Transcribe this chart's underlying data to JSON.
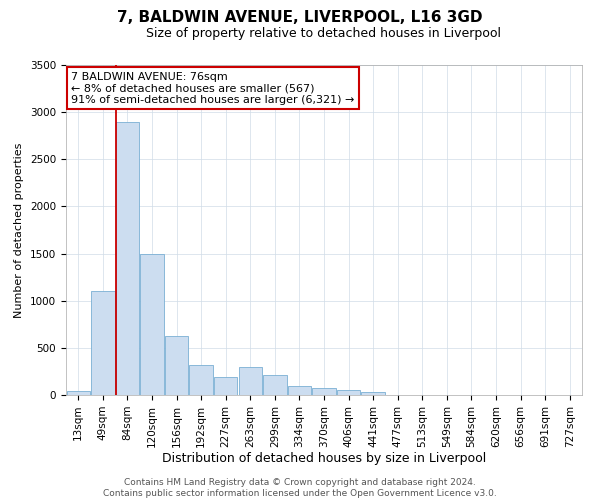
{
  "title": "7, BALDWIN AVENUE, LIVERPOOL, L16 3GD",
  "subtitle": "Size of property relative to detached houses in Liverpool",
  "xlabel": "Distribution of detached houses by size in Liverpool",
  "ylabel": "Number of detached properties",
  "bar_labels": [
    "13sqm",
    "49sqm",
    "84sqm",
    "120sqm",
    "156sqm",
    "192sqm",
    "227sqm",
    "263sqm",
    "299sqm",
    "334sqm",
    "370sqm",
    "406sqm",
    "441sqm",
    "477sqm",
    "513sqm",
    "549sqm",
    "584sqm",
    "620sqm",
    "656sqm",
    "691sqm",
    "727sqm"
  ],
  "bar_values": [
    45,
    1100,
    2900,
    1500,
    630,
    320,
    190,
    295,
    215,
    100,
    75,
    50,
    30,
    0,
    0,
    0,
    0,
    0,
    0,
    0,
    0
  ],
  "bar_color": "#ccddf0",
  "bar_edge_color": "#7aafd4",
  "vline_color": "#cc0000",
  "ylim": [
    0,
    3500
  ],
  "yticks": [
    0,
    500,
    1000,
    1500,
    2000,
    2500,
    3000,
    3500
  ],
  "annotation_title": "7 BALDWIN AVENUE: 76sqm",
  "annotation_line1": "← 8% of detached houses are smaller (567)",
  "annotation_line2": "91% of semi-detached houses are larger (6,321) →",
  "annotation_box_color": "#ffffff",
  "annotation_box_edge": "#cc0000",
  "footer1": "Contains HM Land Registry data © Crown copyright and database right 2024.",
  "footer2": "Contains public sector information licensed under the Open Government Licence v3.0.",
  "title_fontsize": 11,
  "subtitle_fontsize": 9,
  "xlabel_fontsize": 9,
  "ylabel_fontsize": 8,
  "tick_fontsize": 7.5,
  "annotation_fontsize": 8,
  "footer_fontsize": 6.5
}
